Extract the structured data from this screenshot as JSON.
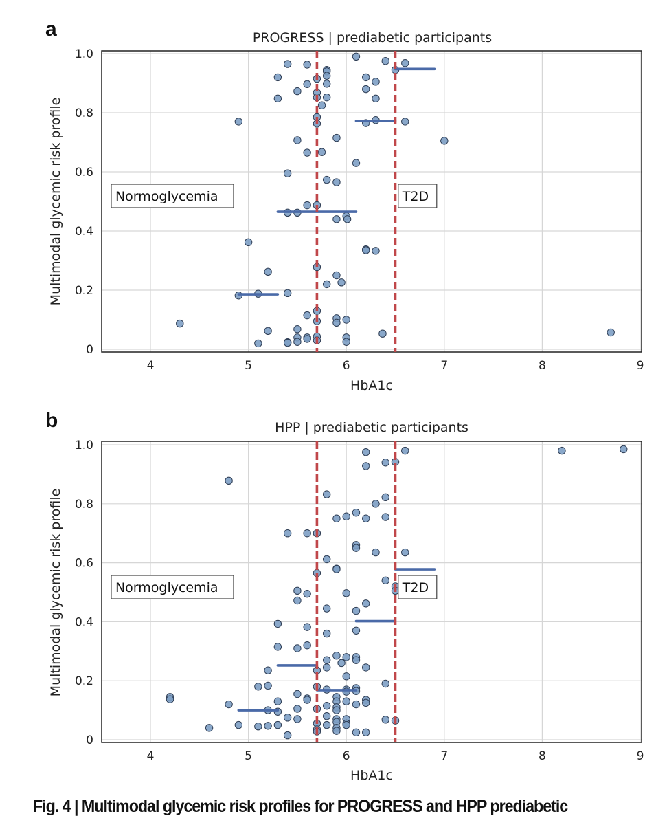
{
  "figure": {
    "caption": "Fig. 4 | Multimodal glycemic risk profiles for PROGRESS and HPP prediabetic"
  },
  "style": {
    "point_fill": "#7d9ec4",
    "point_stroke": "#2f3e55",
    "median_line": "#4a6aa8",
    "threshold_line": "#c0474a",
    "grid": "#d6d6d6",
    "axis": "#222222"
  },
  "chart_data": [
    {
      "type": "scatter",
      "panel_label": "a",
      "title": "PROGRESS | prediabetic participants",
      "xlabel": "HbA1c",
      "ylabel": "Multimodal glycemic risk profile",
      "xlim": [
        3.5,
        9
      ],
      "ylim": [
        0,
        1
      ],
      "xticks": [
        4,
        5,
        6,
        7,
        8,
        9
      ],
      "xtick_labels": [
        "4",
        "5",
        "6",
        "7",
        "8",
        "9"
      ],
      "yticks": [
        0,
        0.2,
        0.4,
        0.6,
        0.8,
        1.0
      ],
      "ytick_labels": [
        "0",
        "0.2",
        "0.4",
        "0.6",
        "0.8",
        "1.0"
      ],
      "grid": true,
      "thresholds": [
        5.7,
        6.5
      ],
      "annotations": [
        {
          "text": "Normoglycemia",
          "x": 3.6,
          "y": 0.515
        },
        {
          "text": "T2D",
          "x": 6.53,
          "y": 0.515
        }
      ],
      "median_segments": [
        {
          "x0": 4.9,
          "x1": 5.3,
          "y": 0.186
        },
        {
          "x0": 5.3,
          "x1": 6.1,
          "y": 0.465
        },
        {
          "x0": 6.1,
          "x1": 6.5,
          "y": 0.772
        },
        {
          "x0": 6.5,
          "x1": 6.9,
          "y": 0.948
        }
      ],
      "points": [
        [
          5.4,
          0.965
        ],
        [
          5.6,
          0.963
        ],
        [
          6.1,
          0.99
        ],
        [
          6.4,
          0.975
        ],
        [
          6.6,
          0.968
        ],
        [
          5.8,
          0.945
        ],
        [
          5.8,
          0.94
        ],
        [
          6.5,
          0.945
        ],
        [
          5.3,
          0.92
        ],
        [
          5.7,
          0.915
        ],
        [
          5.8,
          0.925
        ],
        [
          6.2,
          0.92
        ],
        [
          6.3,
          0.905
        ],
        [
          5.5,
          0.873
        ],
        [
          5.6,
          0.897
        ],
        [
          5.7,
          0.868
        ],
        [
          5.8,
          0.898
        ],
        [
          6.2,
          0.88
        ],
        [
          5.3,
          0.848
        ],
        [
          5.7,
          0.852
        ],
        [
          5.8,
          0.852
        ],
        [
          6.3,
          0.848
        ],
        [
          5.75,
          0.825
        ],
        [
          4.9,
          0.77
        ],
        [
          5.7,
          0.785
        ],
        [
          5.7,
          0.763
        ],
        [
          6.2,
          0.765
        ],
        [
          6.3,
          0.775
        ],
        [
          6.6,
          0.77
        ],
        [
          5.5,
          0.707
        ],
        [
          5.9,
          0.715
        ],
        [
          5.6,
          0.665
        ],
        [
          5.75,
          0.667
        ],
        [
          7.0,
          0.705
        ],
        [
          5.4,
          0.595
        ],
        [
          6.1,
          0.63
        ],
        [
          5.8,
          0.573
        ],
        [
          5.9,
          0.565
        ],
        [
          5.6,
          0.487
        ],
        [
          5.7,
          0.487
        ],
        [
          5.4,
          0.462
        ],
        [
          5.5,
          0.462
        ],
        [
          5.9,
          0.44
        ],
        [
          6.0,
          0.45
        ],
        [
          6.01,
          0.44
        ],
        [
          5.0,
          0.362
        ],
        [
          6.2,
          0.338
        ],
        [
          6.2,
          0.335
        ],
        [
          6.3,
          0.333
        ],
        [
          5.7,
          0.278
        ],
        [
          5.2,
          0.262
        ],
        [
          5.9,
          0.25
        ],
        [
          5.8,
          0.22
        ],
        [
          5.95,
          0.226
        ],
        [
          4.9,
          0.182
        ],
        [
          5.1,
          0.188
        ],
        [
          5.4,
          0.19
        ],
        [
          5.7,
          0.13
        ],
        [
          5.6,
          0.115
        ],
        [
          5.9,
          0.105
        ],
        [
          6.0,
          0.1
        ],
        [
          5.7,
          0.095
        ],
        [
          5.9,
          0.09
        ],
        [
          4.3,
          0.087
        ],
        [
          5.2,
          0.062
        ],
        [
          5.5,
          0.068
        ],
        [
          6.37,
          0.053
        ],
        [
          8.7,
          0.057
        ],
        [
          5.5,
          0.04
        ],
        [
          5.6,
          0.04
        ],
        [
          5.7,
          0.043
        ],
        [
          6.0,
          0.04
        ],
        [
          5.1,
          0.02
        ],
        [
          5.4,
          0.024
        ],
        [
          5.4,
          0.022
        ],
        [
          5.5,
          0.025
        ],
        [
          5.6,
          0.035
        ],
        [
          5.7,
          0.03
        ],
        [
          6.0,
          0.025
        ]
      ]
    },
    {
      "type": "scatter",
      "panel_label": "b",
      "title": "HPP | prediabetic participants",
      "xlabel": "HbA1c",
      "ylabel": "Multimodal glycemic risk profile",
      "xlim": [
        3.5,
        9
      ],
      "ylim": [
        0,
        1
      ],
      "xticks": [
        4,
        5,
        6,
        7,
        8,
        9
      ],
      "xtick_labels": [
        "4",
        "5",
        "6",
        "7",
        "8",
        "9"
      ],
      "yticks": [
        0,
        0.2,
        0.4,
        0.6,
        0.8,
        1.0
      ],
      "ytick_labels": [
        "0",
        "0.2",
        "0.4",
        "0.6",
        "0.8",
        "1.0"
      ],
      "grid": true,
      "thresholds": [
        5.7,
        6.5
      ],
      "annotations": [
        {
          "text": "Normoglycemia",
          "x": 3.6,
          "y": 0.515
        },
        {
          "text": "T2D",
          "x": 6.53,
          "y": 0.515
        }
      ],
      "median_segments": [
        {
          "x0": 4.9,
          "x1": 5.3,
          "y": 0.1
        },
        {
          "x0": 5.3,
          "x1": 5.7,
          "y": 0.252
        },
        {
          "x0": 5.7,
          "x1": 6.1,
          "y": 0.168
        },
        {
          "x0": 6.1,
          "x1": 6.5,
          "y": 0.402
        },
        {
          "x0": 6.5,
          "x1": 6.9,
          "y": 0.578
        }
      ],
      "points": [
        [
          6.2,
          0.975
        ],
        [
          6.6,
          0.98
        ],
        [
          8.2,
          0.98
        ],
        [
          8.83,
          0.985
        ],
        [
          6.4,
          0.94
        ],
        [
          6.5,
          0.942
        ],
        [
          6.2,
          0.928
        ],
        [
          4.8,
          0.878
        ],
        [
          5.8,
          0.832
        ],
        [
          6.4,
          0.822
        ],
        [
          6.3,
          0.8
        ],
        [
          5.9,
          0.75
        ],
        [
          6.0,
          0.757
        ],
        [
          6.1,
          0.77
        ],
        [
          6.2,
          0.75
        ],
        [
          6.4,
          0.755
        ],
        [
          5.4,
          0.7
        ],
        [
          5.6,
          0.7
        ],
        [
          5.7,
          0.7
        ],
        [
          6.1,
          0.66
        ],
        [
          6.1,
          0.65
        ],
        [
          6.3,
          0.635
        ],
        [
          6.6,
          0.635
        ],
        [
          5.8,
          0.612
        ],
        [
          5.9,
          0.58
        ],
        [
          5.9,
          0.578
        ],
        [
          5.7,
          0.565
        ],
        [
          6.4,
          0.54
        ],
        [
          6.5,
          0.52
        ],
        [
          6.5,
          0.505
        ],
        [
          5.5,
          0.505
        ],
        [
          5.6,
          0.495
        ],
        [
          6.0,
          0.497
        ],
        [
          5.5,
          0.472
        ],
        [
          6.2,
          0.462
        ],
        [
          5.8,
          0.445
        ],
        [
          6.1,
          0.437
        ],
        [
          5.3,
          0.393
        ],
        [
          5.6,
          0.382
        ],
        [
          6.1,
          0.37
        ],
        [
          5.8,
          0.36
        ],
        [
          5.3,
          0.315
        ],
        [
          5.5,
          0.31
        ],
        [
          5.6,
          0.32
        ],
        [
          5.9,
          0.285
        ],
        [
          6.0,
          0.28
        ],
        [
          6.1,
          0.28
        ],
        [
          6.1,
          0.27
        ],
        [
          5.8,
          0.27
        ],
        [
          5.95,
          0.26
        ],
        [
          5.2,
          0.235
        ],
        [
          5.7,
          0.235
        ],
        [
          5.8,
          0.245
        ],
        [
          6.0,
          0.215
        ],
        [
          6.2,
          0.245
        ],
        [
          5.1,
          0.18
        ],
        [
          5.2,
          0.183
        ],
        [
          5.7,
          0.18
        ],
        [
          6.0,
          0.17
        ],
        [
          6.0,
          0.163
        ],
        [
          6.1,
          0.175
        ],
        [
          6.1,
          0.165
        ],
        [
          5.8,
          0.17
        ],
        [
          6.4,
          0.19
        ],
        [
          4.2,
          0.145
        ],
        [
          4.2,
          0.137
        ],
        [
          5.3,
          0.13
        ],
        [
          5.5,
          0.155
        ],
        [
          5.6,
          0.14
        ],
        [
          5.6,
          0.135
        ],
        [
          5.9,
          0.145
        ],
        [
          5.9,
          0.13
        ],
        [
          6.0,
          0.13
        ],
        [
          6.1,
          0.12
        ],
        [
          6.2,
          0.135
        ],
        [
          6.2,
          0.125
        ],
        [
          4.8,
          0.12
        ],
        [
          5.2,
          0.1
        ],
        [
          5.3,
          0.095
        ],
        [
          5.5,
          0.105
        ],
        [
          5.7,
          0.105
        ],
        [
          5.8,
          0.115
        ],
        [
          5.9,
          0.11
        ],
        [
          5.4,
          0.075
        ],
        [
          5.5,
          0.07
        ],
        [
          5.8,
          0.08
        ],
        [
          5.9,
          0.1
        ],
        [
          6.0,
          0.07
        ],
        [
          6.4,
          0.068
        ],
        [
          6.5,
          0.065
        ],
        [
          4.9,
          0.05
        ],
        [
          5.1,
          0.045
        ],
        [
          5.2,
          0.047
        ],
        [
          5.3,
          0.05
        ],
        [
          5.7,
          0.055
        ],
        [
          5.8,
          0.05
        ],
        [
          5.9,
          0.07
        ],
        [
          5.9,
          0.06
        ],
        [
          6.0,
          0.055
        ],
        [
          6.0,
          0.05
        ],
        [
          4.6,
          0.04
        ],
        [
          5.4,
          0.015
        ],
        [
          5.7,
          0.035
        ],
        [
          5.7,
          0.028
        ],
        [
          5.9,
          0.04
        ],
        [
          5.9,
          0.03
        ],
        [
          6.1,
          0.025
        ],
        [
          6.2,
          0.025
        ]
      ]
    }
  ]
}
